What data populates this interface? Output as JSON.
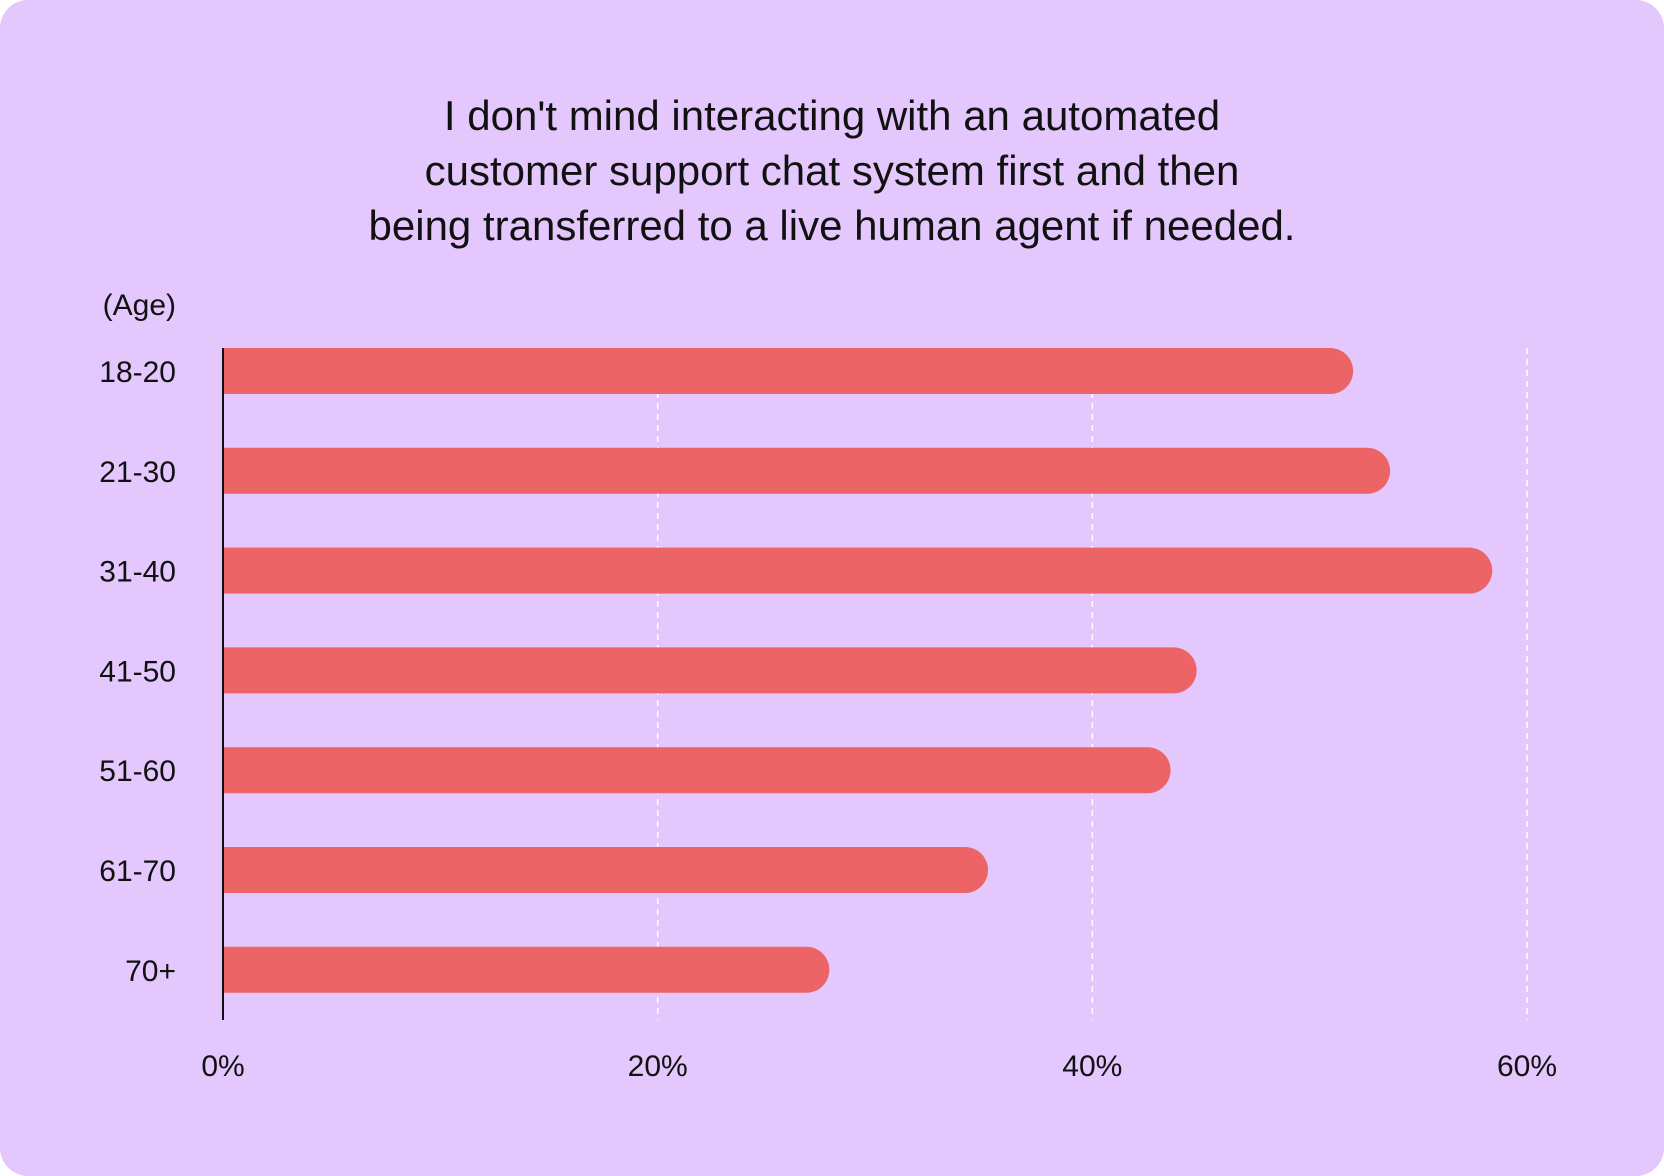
{
  "chart_data": {
    "type": "bar",
    "orientation": "horizontal",
    "title_lines": [
      "I don't mind interacting with an automated",
      "customer support chat system first and then",
      "being transferred to a live human agent if needed."
    ],
    "ylabel": "(Age)",
    "xlabel": "",
    "categories": [
      "18-20",
      "21-30",
      "31-40",
      "41-50",
      "51-60",
      "61-70",
      "70+"
    ],
    "values": [
      52,
      53.7,
      58.4,
      44.8,
      43.6,
      35.2,
      27.9
    ],
    "xlim": [
      0,
      60
    ],
    "x_ticks": [
      0,
      20,
      40,
      60
    ],
    "x_tick_labels": [
      "0%",
      "20%",
      "40%",
      "60%"
    ],
    "grid": "vertical dashed",
    "colors": {
      "background": "#e3c7fd",
      "bar": "#ec6466",
      "grid": "#ffffff",
      "axis": "#111111",
      "text": "#111111"
    }
  }
}
